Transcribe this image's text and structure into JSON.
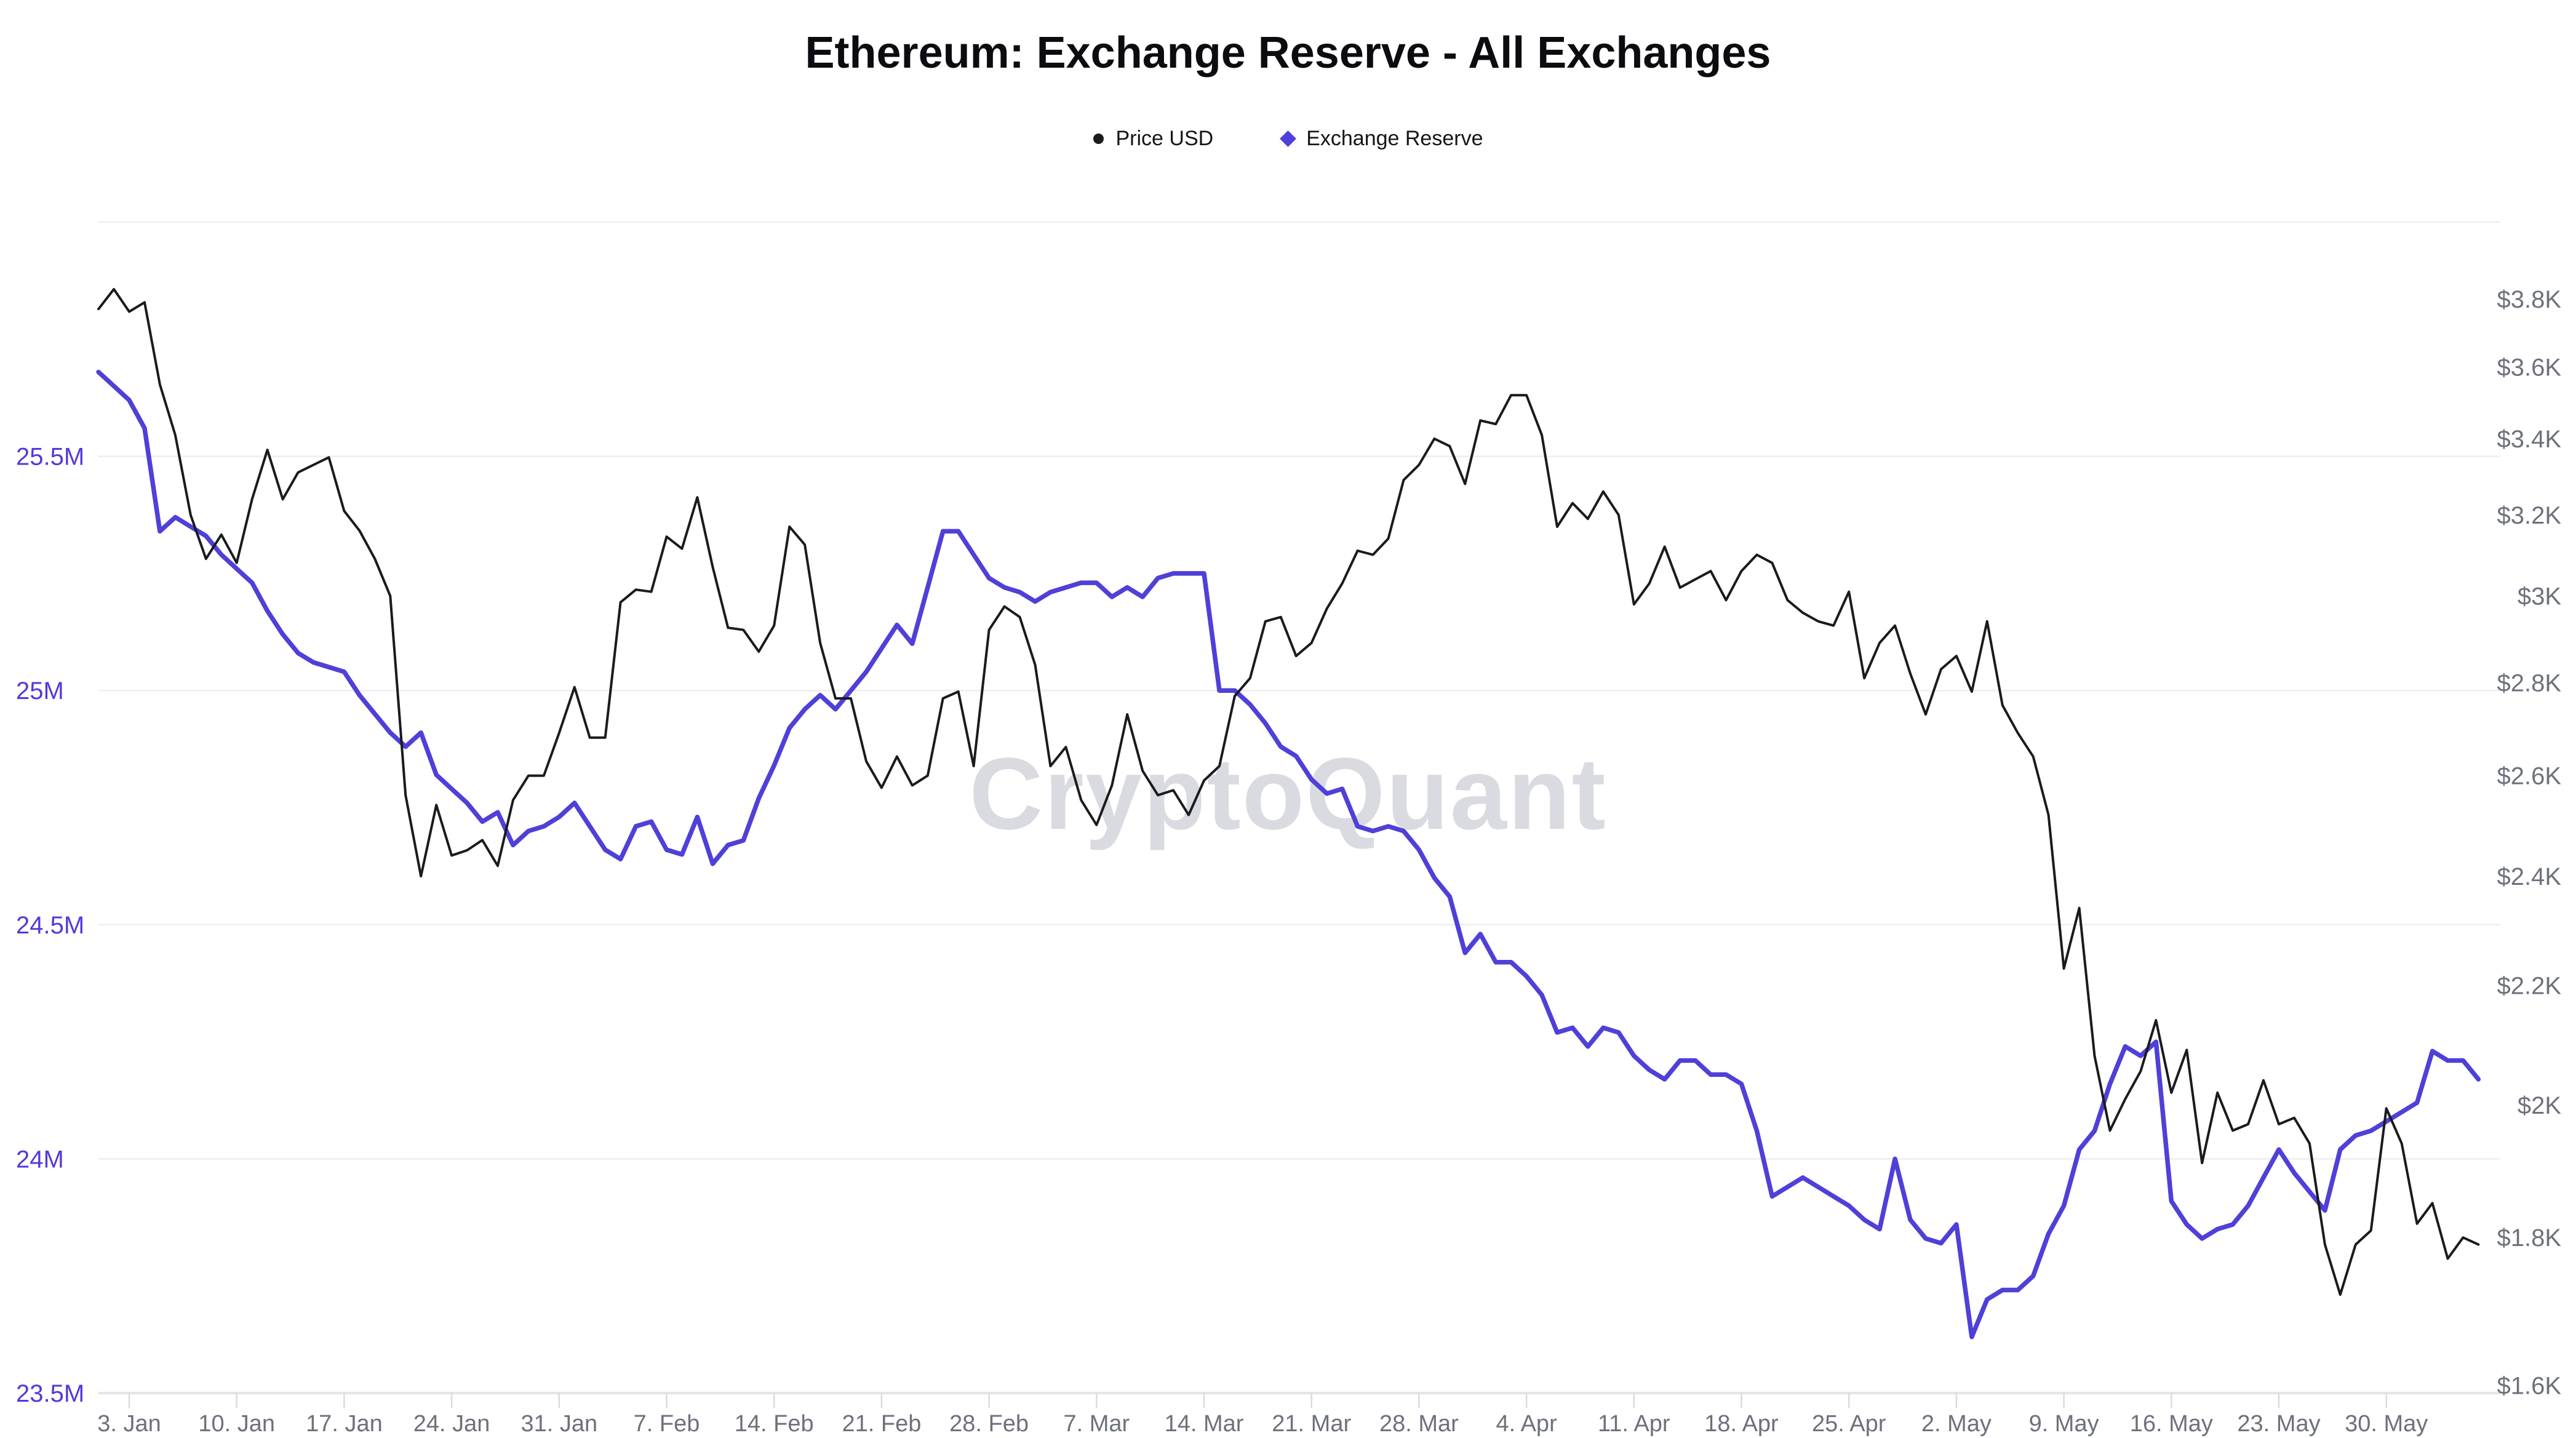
{
  "header": {
    "title": "Ethereum: Exchange Reserve - All Exchanges"
  },
  "watermark": "CryptoQuant",
  "chart_data": {
    "type": "line",
    "title": "Ethereum: Exchange Reserve - All Exchanges",
    "legend_position": "top",
    "grid": "horizontal",
    "background_color": "#ffffff",
    "gridline_color": "#ededf2",
    "axisline_color": "#e3e5e9",
    "tickmark_color": "#d8dbe0",
    "x": {
      "tick_labels": [
        "3. Jan",
        "10. Jan",
        "17. Jan",
        "24. Jan",
        "31. Jan",
        "7. Feb",
        "14. Feb",
        "21. Feb",
        "28. Feb",
        "7. Mar",
        "14. Mar",
        "21. Mar",
        "28. Mar",
        "4. Apr",
        "11. Apr",
        "18. Apr",
        "25. Apr",
        "2. May",
        "9. May",
        "16. May",
        "23. May",
        "30. May"
      ],
      "label_color": "#6d717b",
      "dates": [
        "2022-01-01",
        "2022-01-02",
        "2022-01-03",
        "2022-01-04",
        "2022-01-05",
        "2022-01-06",
        "2022-01-07",
        "2022-01-08",
        "2022-01-09",
        "2022-01-10",
        "2022-01-11",
        "2022-01-12",
        "2022-01-13",
        "2022-01-14",
        "2022-01-15",
        "2022-01-16",
        "2022-01-17",
        "2022-01-18",
        "2022-01-19",
        "2022-01-20",
        "2022-01-21",
        "2022-01-22",
        "2022-01-23",
        "2022-01-24",
        "2022-01-25",
        "2022-01-26",
        "2022-01-27",
        "2022-01-28",
        "2022-01-29",
        "2022-01-30",
        "2022-01-31",
        "2022-02-01",
        "2022-02-02",
        "2022-02-03",
        "2022-02-04",
        "2022-02-05",
        "2022-02-06",
        "2022-02-07",
        "2022-02-08",
        "2022-02-09",
        "2022-02-10",
        "2022-02-11",
        "2022-02-12",
        "2022-02-13",
        "2022-02-14",
        "2022-02-15",
        "2022-02-16",
        "2022-02-17",
        "2022-02-18",
        "2022-02-19",
        "2022-02-20",
        "2022-02-21",
        "2022-02-22",
        "2022-02-23",
        "2022-02-24",
        "2022-02-25",
        "2022-02-26",
        "2022-02-27",
        "2022-02-28",
        "2022-03-01",
        "2022-03-02",
        "2022-03-03",
        "2022-03-04",
        "2022-03-05",
        "2022-03-06",
        "2022-03-07",
        "2022-03-08",
        "2022-03-09",
        "2022-03-10",
        "2022-03-11",
        "2022-03-12",
        "2022-03-13",
        "2022-03-14",
        "2022-03-15",
        "2022-03-16",
        "2022-03-17",
        "2022-03-18",
        "2022-03-19",
        "2022-03-20",
        "2022-03-21",
        "2022-03-22",
        "2022-03-23",
        "2022-03-24",
        "2022-03-25",
        "2022-03-26",
        "2022-03-27",
        "2022-03-28",
        "2022-03-29",
        "2022-03-30",
        "2022-03-31",
        "2022-04-01",
        "2022-04-02",
        "2022-04-03",
        "2022-04-04",
        "2022-04-05",
        "2022-04-06",
        "2022-04-07",
        "2022-04-08",
        "2022-04-09",
        "2022-04-10",
        "2022-04-11",
        "2022-04-12",
        "2022-04-13",
        "2022-04-14",
        "2022-04-15",
        "2022-04-16",
        "2022-04-17",
        "2022-04-18",
        "2022-04-19",
        "2022-04-20",
        "2022-04-21",
        "2022-04-22",
        "2022-04-23",
        "2022-04-24",
        "2022-04-25",
        "2022-04-26",
        "2022-04-27",
        "2022-04-28",
        "2022-04-29",
        "2022-04-30",
        "2022-05-01",
        "2022-05-02",
        "2022-05-03",
        "2022-05-04",
        "2022-05-05",
        "2022-05-06",
        "2022-05-07",
        "2022-05-08",
        "2022-05-09",
        "2022-05-10",
        "2022-05-11",
        "2022-05-12",
        "2022-05-13",
        "2022-05-14",
        "2022-05-15",
        "2022-05-16",
        "2022-05-17",
        "2022-05-18",
        "2022-05-19",
        "2022-05-20",
        "2022-05-21",
        "2022-05-22",
        "2022-05-23",
        "2022-05-24",
        "2022-05-25",
        "2022-05-26",
        "2022-05-27",
        "2022-05-28",
        "2022-05-29",
        "2022-05-30",
        "2022-05-31",
        "2022-06-01",
        "2022-06-02",
        "2022-06-03",
        "2022-06-04",
        "2022-06-05"
      ]
    },
    "left_axis": {
      "name": "Exchange Reserve",
      "scale": "linear",
      "range_min_millions": 23.5,
      "range_max_millions": 26.0,
      "tick_labels": [
        "25.5M",
        "25M",
        "24.5M",
        "24M",
        "23.5M"
      ],
      "tick_values_millions": [
        25.5,
        25.0,
        24.5,
        24.0,
        23.5
      ],
      "label_color": "#5538da"
    },
    "right_axis": {
      "name": "Price USD",
      "scale": "log",
      "range_min": 1590,
      "range_max": 4040,
      "tick_labels": [
        "$3.8K",
        "$3.6K",
        "$3.4K",
        "$3.2K",
        "$3K",
        "$2.8K",
        "$2.6K",
        "$2.4K",
        "$2.2K",
        "$2K",
        "$1.8K",
        "$1.6K"
      ],
      "tick_values": [
        3800,
        3600,
        3400,
        3200,
        3000,
        2800,
        2600,
        2400,
        2200,
        2000,
        1800,
        1600
      ],
      "label_color": "#6d717b"
    },
    "series": [
      {
        "name": "Price USD",
        "axis": "right",
        "color": "#1a1b1e",
        "marker": "circle",
        "values": [
          3770,
          3830,
          3762,
          3790,
          3550,
          3410,
          3200,
          3090,
          3150,
          3080,
          3240,
          3370,
          3240,
          3310,
          3330,
          3350,
          3210,
          3160,
          3090,
          3000,
          2560,
          2400,
          2540,
          2440,
          2450,
          2470,
          2420,
          2550,
          2600,
          2600,
          2690,
          2790,
          2680,
          2680,
          2985,
          3015,
          3010,
          3145,
          3115,
          3245,
          3070,
          2925,
          2920,
          2870,
          2930,
          3170,
          3125,
          2890,
          2765,
          2765,
          2630,
          2575,
          2640,
          2580,
          2600,
          2765,
          2780,
          2620,
          2920,
          2975,
          2950,
          2840,
          2620,
          2660,
          2550,
          2500,
          2580,
          2730,
          2610,
          2560,
          2570,
          2520,
          2590,
          2620,
          2770,
          2810,
          2940,
          2950,
          2860,
          2890,
          2970,
          3030,
          3110,
          3100,
          3140,
          3290,
          3330,
          3400,
          3380,
          3280,
          3450,
          3440,
          3520,
          3520,
          3410,
          3170,
          3230,
          3190,
          3260,
          3200,
          2980,
          3030,
          3120,
          3020,
          3040,
          3060,
          2990,
          3060,
          3100,
          3080,
          2990,
          2960,
          2940,
          2930,
          3010,
          2810,
          2890,
          2930,
          2820,
          2730,
          2830,
          2860,
          2780,
          2940,
          2750,
          2690,
          2640,
          2520,
          2230,
          2340,
          2080,
          1960,
          2010,
          2055,
          2140,
          2020,
          2090,
          1910,
          2020,
          1960,
          1970,
          2040,
          1970,
          1980,
          1940,
          1790,
          1720,
          1790,
          1810,
          1995,
          1940,
          1820,
          1850,
          1770,
          1800,
          1790
        ]
      },
      {
        "name": "Exchange Reserve",
        "axis": "left",
        "color": "#4e40d8",
        "marker": "diamond",
        "values_millions": [
          25.68,
          25.65,
          25.62,
          25.56,
          25.34,
          25.37,
          25.35,
          25.33,
          25.29,
          25.26,
          25.23,
          25.17,
          25.12,
          25.08,
          25.06,
          25.05,
          25.04,
          24.99,
          24.95,
          24.91,
          24.88,
          24.91,
          24.82,
          24.79,
          24.76,
          24.72,
          24.74,
          24.67,
          24.7,
          24.71,
          24.73,
          24.76,
          24.71,
          24.66,
          24.64,
          24.71,
          24.72,
          24.66,
          24.65,
          24.73,
          24.63,
          24.67,
          24.68,
          24.77,
          24.84,
          24.92,
          24.96,
          24.99,
          24.96,
          25.0,
          25.04,
          25.09,
          25.14,
          25.1,
          25.22,
          25.34,
          25.34,
          25.29,
          25.24,
          25.22,
          25.21,
          25.19,
          25.21,
          25.22,
          25.23,
          25.23,
          25.2,
          25.22,
          25.2,
          25.24,
          25.25,
          25.25,
          25.25,
          25.0,
          25.0,
          24.97,
          24.93,
          24.88,
          24.86,
          24.81,
          24.78,
          24.79,
          24.71,
          24.7,
          24.71,
          24.7,
          24.66,
          24.6,
          24.56,
          24.44,
          24.48,
          24.42,
          24.42,
          24.39,
          24.35,
          24.27,
          24.28,
          24.24,
          24.28,
          24.27,
          24.22,
          24.19,
          24.17,
          24.21,
          24.21,
          24.18,
          24.18,
          24.16,
          24.06,
          23.92,
          23.94,
          23.96,
          23.94,
          23.92,
          23.9,
          23.87,
          23.85,
          24.0,
          23.87,
          23.83,
          23.82,
          23.86,
          23.62,
          23.7,
          23.72,
          23.72,
          23.75,
          23.84,
          23.9,
          24.02,
          24.06,
          24.16,
          24.24,
          24.22,
          24.25,
          23.91,
          23.86,
          23.83,
          23.85,
          23.86,
          23.9,
          23.96,
          24.02,
          23.97,
          23.93,
          23.89,
          24.02,
          24.05,
          24.06,
          24.08,
          24.1,
          24.12,
          24.23,
          24.21,
          24.21,
          24.17
        ]
      }
    ]
  }
}
